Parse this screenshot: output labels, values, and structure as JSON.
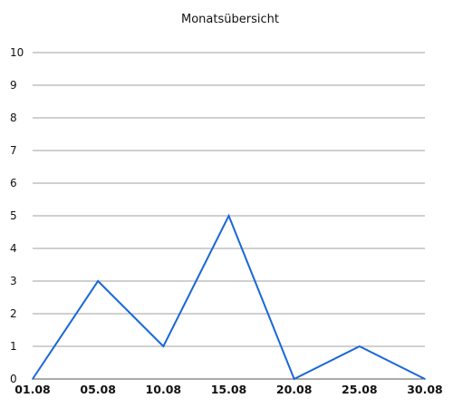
{
  "chart_data": {
    "type": "line",
    "title": "Monatsübersicht",
    "xlabel": "",
    "ylabel": "",
    "x_tick_labels": [
      "01.08",
      "05.08",
      "10.08",
      "15.08",
      "20.08",
      "25.08",
      "30.08"
    ],
    "y_tick_labels": [
      "0",
      "1",
      "2",
      "3",
      "4",
      "5",
      "6",
      "7",
      "8",
      "9",
      "10"
    ],
    "ylim": [
      0,
      10
    ],
    "grid": true,
    "legend": "none",
    "series": [
      {
        "color": "#1a66d9",
        "points": [
          {
            "x": "01.08",
            "y": 0
          },
          {
            "x": "05.08",
            "y": 3
          },
          {
            "x": "10.08",
            "y": 1
          },
          {
            "x": "15.08",
            "y": 5
          },
          {
            "x": "20.08",
            "y": 0
          },
          {
            "x": "25.08",
            "y": 1
          },
          {
            "x": "30.08",
            "y": 0
          }
        ]
      }
    ],
    "colors": {
      "line": "#1a66d9",
      "grid": "#a0a0a0",
      "axis": "#555555"
    }
  }
}
